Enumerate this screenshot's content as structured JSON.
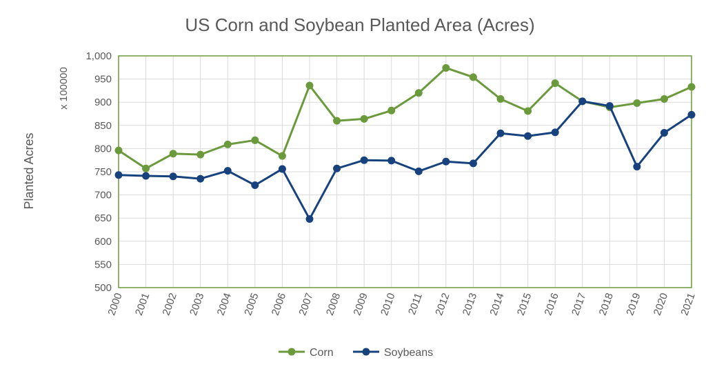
{
  "chart_data": {
    "type": "line",
    "title": "US Corn and Soybean Planted Area (Acres)",
    "ylabel": "Planted Acres",
    "yunit": "x 100000",
    "xlabel": "",
    "ylim": [
      500,
      1000
    ],
    "y_ticks": [
      "500",
      "550",
      "600",
      "650",
      "700",
      "750",
      "800",
      "850",
      "900",
      "950",
      "1,000"
    ],
    "categories": [
      "2000",
      "2001",
      "2002",
      "2003",
      "2004",
      "2005",
      "2006",
      "2007",
      "2008",
      "2009",
      "2010",
      "2011",
      "2012",
      "2013",
      "2014",
      "2015",
      "2016",
      "2017",
      "2018",
      "2019",
      "2020",
      "2021"
    ],
    "series": [
      {
        "name": "Corn",
        "color": "#6b9a3c",
        "values": [
          796,
          757,
          789,
          787,
          809,
          818,
          784,
          936,
          860,
          864,
          882,
          920,
          974,
          954,
          907,
          881,
          941,
          902,
          889,
          898,
          907,
          933
        ]
      },
      {
        "name": "Soybeans",
        "color": "#17427e",
        "values": [
          743,
          741,
          740,
          735,
          752,
          721,
          756,
          648,
          757,
          775,
          774,
          751,
          772,
          768,
          833,
          827,
          835,
          902,
          892,
          761,
          834,
          873
        ]
      }
    ],
    "grid": true,
    "legend_position": "bottom",
    "plot_border_color": "#6b9a3c"
  }
}
